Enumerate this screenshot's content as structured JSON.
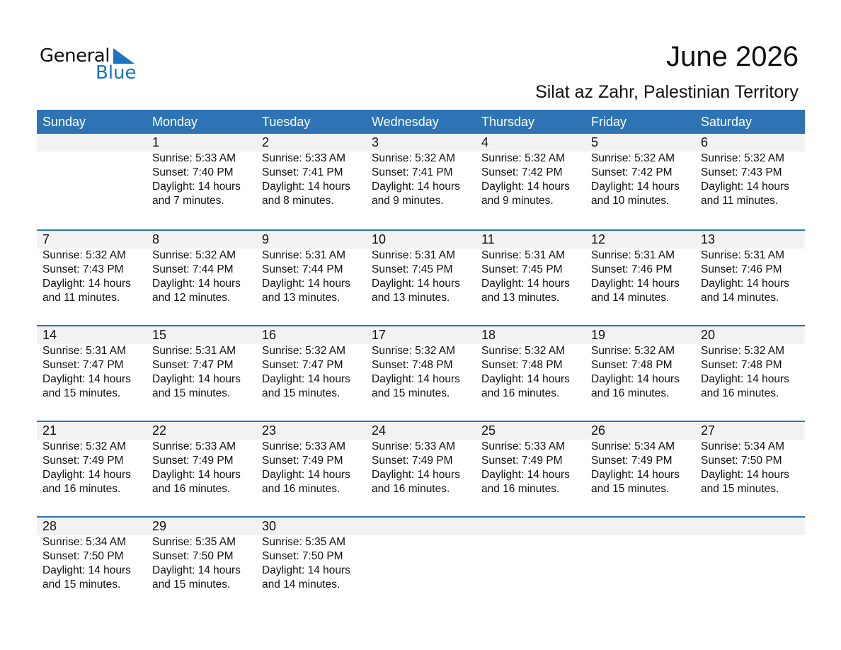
{
  "logo": {
    "text1": "General",
    "text2": "Blue",
    "color": "#1a73c0"
  },
  "title": "June 2026",
  "subtitle": "Silat az Zahr, Palestinian Territory",
  "header_color": "#2e74b5",
  "weekdays": [
    "Sunday",
    "Monday",
    "Tuesday",
    "Wednesday",
    "Thursday",
    "Friday",
    "Saturday"
  ],
  "weeks": [
    [
      null,
      {
        "day": "1",
        "sunrise": "Sunrise: 5:33 AM",
        "sunset": "Sunset: 7:40 PM",
        "daylight1": "Daylight: 14 hours",
        "daylight2": "and 7 minutes."
      },
      {
        "day": "2",
        "sunrise": "Sunrise: 5:33 AM",
        "sunset": "Sunset: 7:41 PM",
        "daylight1": "Daylight: 14 hours",
        "daylight2": "and 8 minutes."
      },
      {
        "day": "3",
        "sunrise": "Sunrise: 5:32 AM",
        "sunset": "Sunset: 7:41 PM",
        "daylight1": "Daylight: 14 hours",
        "daylight2": "and 9 minutes."
      },
      {
        "day": "4",
        "sunrise": "Sunrise: 5:32 AM",
        "sunset": "Sunset: 7:42 PM",
        "daylight1": "Daylight: 14 hours",
        "daylight2": "and 9 minutes."
      },
      {
        "day": "5",
        "sunrise": "Sunrise: 5:32 AM",
        "sunset": "Sunset: 7:42 PM",
        "daylight1": "Daylight: 14 hours",
        "daylight2": "and 10 minutes."
      },
      {
        "day": "6",
        "sunrise": "Sunrise: 5:32 AM",
        "sunset": "Sunset: 7:43 PM",
        "daylight1": "Daylight: 14 hours",
        "daylight2": "and 11 minutes."
      }
    ],
    [
      {
        "day": "7",
        "sunrise": "Sunrise: 5:32 AM",
        "sunset": "Sunset: 7:43 PM",
        "daylight1": "Daylight: 14 hours",
        "daylight2": "and 11 minutes."
      },
      {
        "day": "8",
        "sunrise": "Sunrise: 5:32 AM",
        "sunset": "Sunset: 7:44 PM",
        "daylight1": "Daylight: 14 hours",
        "daylight2": "and 12 minutes."
      },
      {
        "day": "9",
        "sunrise": "Sunrise: 5:31 AM",
        "sunset": "Sunset: 7:44 PM",
        "daylight1": "Daylight: 14 hours",
        "daylight2": "and 13 minutes."
      },
      {
        "day": "10",
        "sunrise": "Sunrise: 5:31 AM",
        "sunset": "Sunset: 7:45 PM",
        "daylight1": "Daylight: 14 hours",
        "daylight2": "and 13 minutes."
      },
      {
        "day": "11",
        "sunrise": "Sunrise: 5:31 AM",
        "sunset": "Sunset: 7:45 PM",
        "daylight1": "Daylight: 14 hours",
        "daylight2": "and 13 minutes."
      },
      {
        "day": "12",
        "sunrise": "Sunrise: 5:31 AM",
        "sunset": "Sunset: 7:46 PM",
        "daylight1": "Daylight: 14 hours",
        "daylight2": "and 14 minutes."
      },
      {
        "day": "13",
        "sunrise": "Sunrise: 5:31 AM",
        "sunset": "Sunset: 7:46 PM",
        "daylight1": "Daylight: 14 hours",
        "daylight2": "and 14 minutes."
      }
    ],
    [
      {
        "day": "14",
        "sunrise": "Sunrise: 5:31 AM",
        "sunset": "Sunset: 7:47 PM",
        "daylight1": "Daylight: 14 hours",
        "daylight2": "and 15 minutes."
      },
      {
        "day": "15",
        "sunrise": "Sunrise: 5:31 AM",
        "sunset": "Sunset: 7:47 PM",
        "daylight1": "Daylight: 14 hours",
        "daylight2": "and 15 minutes."
      },
      {
        "day": "16",
        "sunrise": "Sunrise: 5:32 AM",
        "sunset": "Sunset: 7:47 PM",
        "daylight1": "Daylight: 14 hours",
        "daylight2": "and 15 minutes."
      },
      {
        "day": "17",
        "sunrise": "Sunrise: 5:32 AM",
        "sunset": "Sunset: 7:48 PM",
        "daylight1": "Daylight: 14 hours",
        "daylight2": "and 15 minutes."
      },
      {
        "day": "18",
        "sunrise": "Sunrise: 5:32 AM",
        "sunset": "Sunset: 7:48 PM",
        "daylight1": "Daylight: 14 hours",
        "daylight2": "and 16 minutes."
      },
      {
        "day": "19",
        "sunrise": "Sunrise: 5:32 AM",
        "sunset": "Sunset: 7:48 PM",
        "daylight1": "Daylight: 14 hours",
        "daylight2": "and 16 minutes."
      },
      {
        "day": "20",
        "sunrise": "Sunrise: 5:32 AM",
        "sunset": "Sunset: 7:48 PM",
        "daylight1": "Daylight: 14 hours",
        "daylight2": "and 16 minutes."
      }
    ],
    [
      {
        "day": "21",
        "sunrise": "Sunrise: 5:32 AM",
        "sunset": "Sunset: 7:49 PM",
        "daylight1": "Daylight: 14 hours",
        "daylight2": "and 16 minutes."
      },
      {
        "day": "22",
        "sunrise": "Sunrise: 5:33 AM",
        "sunset": "Sunset: 7:49 PM",
        "daylight1": "Daylight: 14 hours",
        "daylight2": "and 16 minutes."
      },
      {
        "day": "23",
        "sunrise": "Sunrise: 5:33 AM",
        "sunset": "Sunset: 7:49 PM",
        "daylight1": "Daylight: 14 hours",
        "daylight2": "and 16 minutes."
      },
      {
        "day": "24",
        "sunrise": "Sunrise: 5:33 AM",
        "sunset": "Sunset: 7:49 PM",
        "daylight1": "Daylight: 14 hours",
        "daylight2": "and 16 minutes."
      },
      {
        "day": "25",
        "sunrise": "Sunrise: 5:33 AM",
        "sunset": "Sunset: 7:49 PM",
        "daylight1": "Daylight: 14 hours",
        "daylight2": "and 16 minutes."
      },
      {
        "day": "26",
        "sunrise": "Sunrise: 5:34 AM",
        "sunset": "Sunset: 7:49 PM",
        "daylight1": "Daylight: 14 hours",
        "daylight2": "and 15 minutes."
      },
      {
        "day": "27",
        "sunrise": "Sunrise: 5:34 AM",
        "sunset": "Sunset: 7:50 PM",
        "daylight1": "Daylight: 14 hours",
        "daylight2": "and 15 minutes."
      }
    ],
    [
      {
        "day": "28",
        "sunrise": "Sunrise: 5:34 AM",
        "sunset": "Sunset: 7:50 PM",
        "daylight1": "Daylight: 14 hours",
        "daylight2": "and 15 minutes."
      },
      {
        "day": "29",
        "sunrise": "Sunrise: 5:35 AM",
        "sunset": "Sunset: 7:50 PM",
        "daylight1": "Daylight: 14 hours",
        "daylight2": "and 15 minutes."
      },
      {
        "day": "30",
        "sunrise": "Sunrise: 5:35 AM",
        "sunset": "Sunset: 7:50 PM",
        "daylight1": "Daylight: 14 hours",
        "daylight2": "and 14 minutes."
      },
      null,
      null,
      null,
      null
    ]
  ]
}
